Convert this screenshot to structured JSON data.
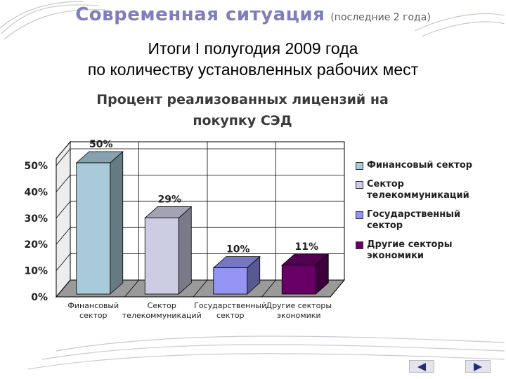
{
  "header": {
    "title": "Современная ситуация",
    "title_note": "(последние 2 года)",
    "subtitle_line1": "Итоги I полугодия 2009 года",
    "subtitle_line2": "по количеству установленных рабочих мест"
  },
  "chart_data": {
    "type": "bar",
    "title_line1": "Процент реализованных лицензий на",
    "title_line2": "покупку СЭД",
    "categories": [
      [
        "Финансовый",
        "сектор"
      ],
      [
        "Сектор",
        "телекоммуникаций"
      ],
      [
        "Государственный",
        "сектор"
      ],
      [
        "Другие секторы",
        "экономики"
      ]
    ],
    "values": [
      50,
      29,
      10,
      11
    ],
    "data_labels": [
      "50%",
      "29%",
      "10%",
      "11%"
    ],
    "y_ticks": [
      "0%",
      "10%",
      "20%",
      "30%",
      "40%",
      "50%"
    ],
    "ylim": [
      0,
      50
    ],
    "grid": true,
    "three_d": true,
    "colors": [
      "#A9CBD9",
      "#CCCCE2",
      "#9494F2",
      "#660066"
    ],
    "legend_position": "right",
    "legend": [
      [
        "Финансовый сектор"
      ],
      [
        "Сектор",
        "телекоммуникаций"
      ],
      [
        "Государственный",
        "сектор"
      ],
      [
        "Другие секторы",
        "экономики"
      ]
    ]
  },
  "nav": {
    "prev_icon": "triangle-left-icon",
    "next_icon": "triangle-right-icon"
  }
}
